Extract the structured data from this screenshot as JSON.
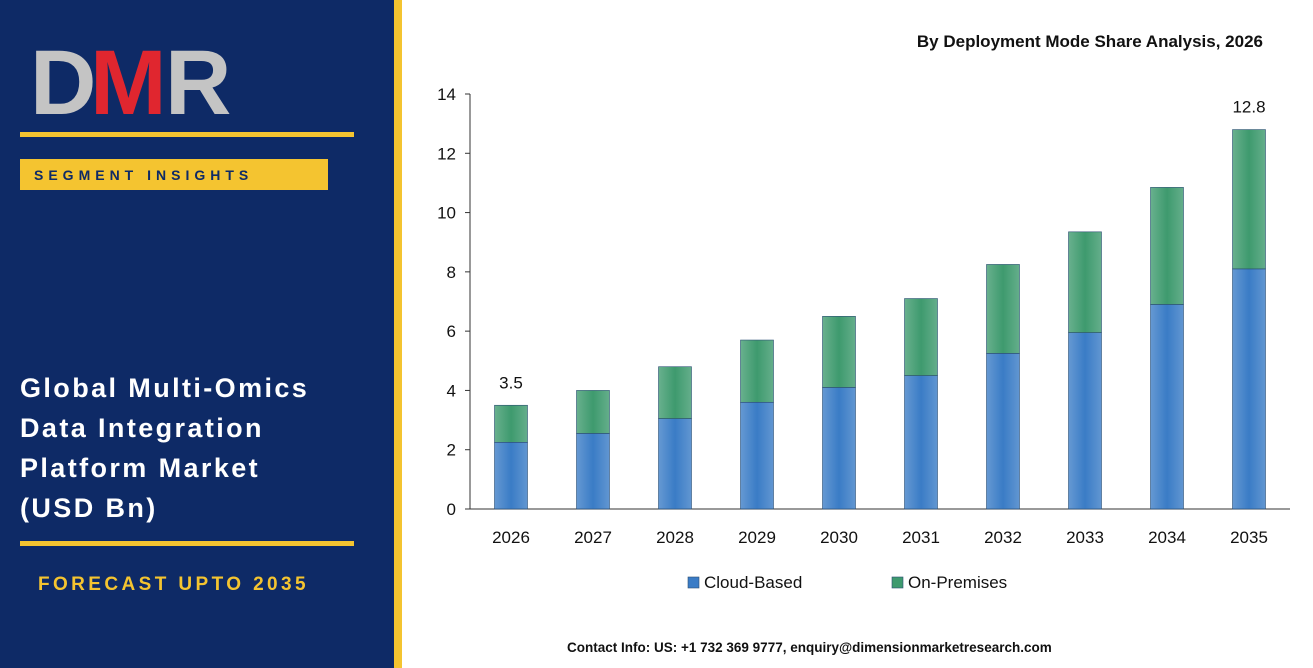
{
  "logo": {
    "text": "DMR",
    "colors": {
      "D": "#c4c4c4",
      "M": "#e0262f",
      "R": "#c4c4c4"
    }
  },
  "sidebar": {
    "segment_label": "SEGMENT INSIGHTS",
    "title_lines": [
      "Global Multi-Omics",
      "Data Integration",
      "Platform Market",
      "(USD Bn)"
    ],
    "forecast": "FORECAST UPTO 2035"
  },
  "footer": {
    "contact": "Contact Info: US: +1 732 369 9777, enquiry@dimensionmarketresearch.com"
  },
  "colors": {
    "navy": "#0e2a66",
    "gold": "#f4c430",
    "cloud": "#3a7cc6",
    "onprem": "#3e9a6e"
  },
  "chart_data": {
    "type": "bar",
    "stacked": true,
    "title": "By Deployment Mode Share Analysis, 2026",
    "categories": [
      "2026",
      "2027",
      "2028",
      "2029",
      "2030",
      "2031",
      "2032",
      "2033",
      "2034",
      "2035"
    ],
    "series": [
      {
        "name": "Cloud-Based",
        "color": "#3a7cc6",
        "values": [
          2.25,
          2.55,
          3.05,
          3.6,
          4.1,
          4.5,
          5.25,
          5.95,
          6.9,
          8.1
        ]
      },
      {
        "name": "On-Premises",
        "color": "#3e9a6e",
        "values": [
          1.25,
          1.45,
          1.75,
          2.1,
          2.4,
          2.6,
          3.0,
          3.4,
          3.95,
          4.7
        ]
      }
    ],
    "data_labels": [
      {
        "category": "2026",
        "text": "3.5"
      },
      {
        "category": "2035",
        "text": "12.8"
      }
    ],
    "ylim": [
      0,
      14
    ],
    "yticks": [
      0,
      2,
      4,
      6,
      8,
      10,
      12,
      14
    ],
    "legend": "bottom",
    "grid": false
  }
}
